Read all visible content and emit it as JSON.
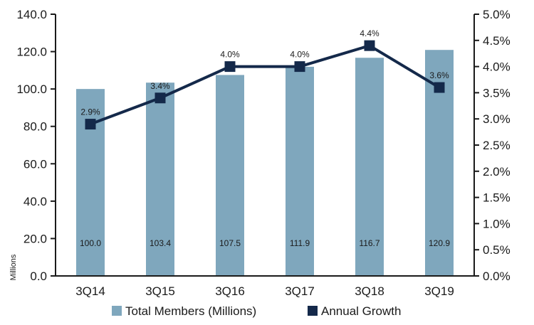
{
  "chart_data": {
    "type": "bar+line",
    "categories": [
      "3Q14",
      "3Q15",
      "3Q16",
      "3Q17",
      "3Q18",
      "3Q19"
    ],
    "series": [
      {
        "name": "Total Members (Millions)",
        "kind": "bar",
        "axis": "left",
        "values": [
          100.0,
          103.4,
          107.5,
          111.9,
          116.7,
          120.9
        ],
        "labels": [
          "100.0",
          "103.4",
          "107.5",
          "111.9",
          "116.7",
          "120.9"
        ],
        "color": "#7fa7bd"
      },
      {
        "name": "Annual Growth",
        "kind": "line",
        "axis": "right",
        "values": [
          2.9,
          3.4,
          4.0,
          4.0,
          4.4,
          3.6
        ],
        "labels": [
          "2.9%",
          "3.4%",
          "4.0%",
          "4.0%",
          "4.4%",
          "3.6%"
        ],
        "color": "#14294a"
      }
    ],
    "y_left": {
      "label": "Millions",
      "range": [
        0,
        140
      ],
      "ticks": [
        "0.0",
        "20.0",
        "40.0",
        "60.0",
        "80.0",
        "100.0",
        "120.0",
        "140.0"
      ]
    },
    "y_right": {
      "range": [
        0,
        5
      ],
      "ticks": [
        "0.0%",
        "0.5%",
        "1.0%",
        "1.5%",
        "2.0%",
        "2.5%",
        "3.0%",
        "3.5%",
        "4.0%",
        "4.5%",
        "5.0%"
      ]
    },
    "legend": {
      "position": "bottom",
      "items": [
        "Total Members (Millions)",
        "Annual Growth"
      ]
    },
    "grid": false
  }
}
